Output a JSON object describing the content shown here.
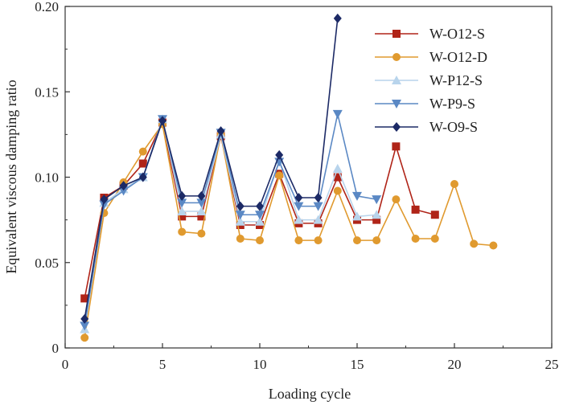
{
  "chart_data": {
    "type": "line",
    "xlabel": "Loading cycle",
    "ylabel": "Equivalent viscous damping ratio",
    "xlim": [
      0,
      25
    ],
    "ylim": [
      0,
      0.2
    ],
    "xticks": [
      0,
      5,
      10,
      15,
      20,
      25
    ],
    "yticks": [
      0,
      0.05,
      0.1,
      0.15,
      0.2
    ],
    "xtick_labels": [
      "0",
      "5",
      "10",
      "15",
      "20",
      "25"
    ],
    "ytick_labels": [
      "0",
      "0.05",
      "0.10",
      "0.15",
      "0.20"
    ],
    "grid": false,
    "legend_position": "top-right",
    "series": [
      {
        "name": "W-O12-S",
        "color": "#b02418",
        "marker": "square",
        "x": [
          1,
          2,
          3,
          4,
          5,
          6,
          7,
          8,
          9,
          10,
          11,
          12,
          13,
          14,
          15,
          16,
          17,
          18,
          19
        ],
        "y": [
          0.029,
          0.088,
          0.095,
          0.108,
          0.132,
          0.077,
          0.077,
          0.124,
          0.072,
          0.072,
          0.102,
          0.073,
          0.073,
          0.1,
          0.075,
          0.075,
          0.118,
          0.081,
          0.078
        ]
      },
      {
        "name": "W-O12-D",
        "color": "#e09a2f",
        "marker": "circle",
        "x": [
          1,
          2,
          3,
          4,
          5,
          6,
          7,
          8,
          9,
          10,
          11,
          12,
          13,
          14,
          15,
          16,
          17,
          18,
          19,
          20,
          21,
          22
        ],
        "y": [
          0.006,
          0.079,
          0.097,
          0.115,
          0.131,
          0.068,
          0.067,
          0.125,
          0.064,
          0.063,
          0.101,
          0.063,
          0.063,
          0.092,
          0.063,
          0.063,
          0.087,
          0.064,
          0.064,
          0.096,
          0.061,
          0.06
        ]
      },
      {
        "name": "W-P12-S",
        "color": "#b8d4ec",
        "marker": "triangle-up",
        "x": [
          1,
          2,
          3,
          4,
          5,
          6,
          7,
          8,
          9,
          10,
          11,
          12,
          13,
          14,
          15,
          16
        ],
        "y": [
          0.011,
          0.085,
          0.093,
          0.1,
          0.134,
          0.08,
          0.08,
          0.125,
          0.074,
          0.074,
          0.11,
          0.075,
          0.075,
          0.105,
          0.077,
          0.078
        ]
      },
      {
        "name": "W-P9-S",
        "color": "#5a88c4",
        "marker": "triangle-down",
        "x": [
          1,
          2,
          3,
          4,
          5,
          6,
          7,
          8,
          9,
          10,
          11,
          12,
          13,
          14,
          15,
          16
        ],
        "y": [
          0.013,
          0.084,
          0.092,
          0.1,
          0.134,
          0.085,
          0.085,
          0.126,
          0.078,
          0.078,
          0.109,
          0.083,
          0.083,
          0.137,
          0.089,
          0.087
        ]
      },
      {
        "name": "W-O9-S",
        "color": "#1c2a66",
        "marker": "diamond",
        "x": [
          1,
          2,
          3,
          4,
          5,
          6,
          7,
          8,
          9,
          10,
          11,
          12,
          13,
          14
        ],
        "y": [
          0.017,
          0.087,
          0.095,
          0.1,
          0.133,
          0.089,
          0.089,
          0.127,
          0.083,
          0.083,
          0.113,
          0.088,
          0.088,
          0.193
        ]
      }
    ]
  }
}
